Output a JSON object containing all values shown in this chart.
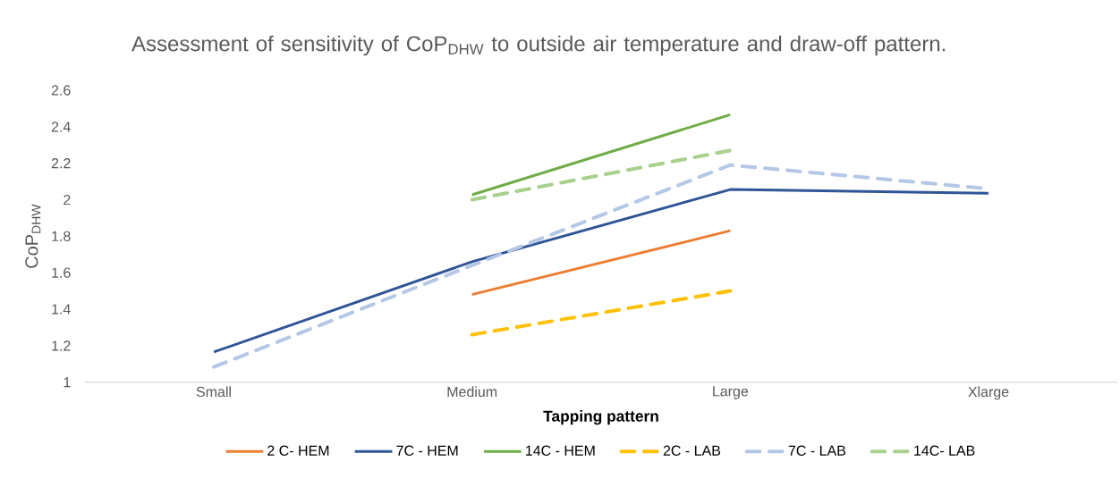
{
  "chart_data": {
    "type": "line",
    "title": "Assessment of sensitivity of CoP$_{DHW}$ to outside air temperature and draw-off pattern.",
    "xlabel": "Tapping pattern",
    "ylabel": "CoP$_{DHW}$",
    "categories": [
      "Small",
      "Medium",
      "Large",
      "Xlarge"
    ],
    "ylim": [
      1,
      2.6
    ],
    "yticks": [
      1,
      1.2,
      1.4,
      1.6,
      1.8,
      2,
      2.2,
      2.4,
      2.6
    ],
    "grid": false,
    "legend": "bottom",
    "marker": "none",
    "series": [
      {
        "name": "2 C- HEM",
        "color": "#ed7d31",
        "line_style": "solid",
        "values": [
          null,
          1.48,
          1.83,
          null
        ]
      },
      {
        "name": "7C - HEM",
        "color": "#2f5597",
        "line_style": "solid",
        "values": [
          1.165,
          1.66,
          2.056,
          2.035
        ]
      },
      {
        "name": "14C - HEM",
        "color": "#70ad47",
        "line_style": "solid",
        "values": [
          null,
          2.027,
          2.466,
          null
        ]
      },
      {
        "name": "2C - LAB",
        "color": "#ffc000",
        "line_style": "dashed",
        "values": [
          null,
          1.26,
          1.5,
          null
        ]
      },
      {
        "name": "7C - LAB",
        "color": "#b4c7e7",
        "line_style": "dashed",
        "values": [
          1.083,
          1.64,
          2.19,
          2.06
        ]
      },
      {
        "name": "14C- LAB",
        "color": "#a9d18e",
        "line_style": "dashed",
        "values": [
          null,
          2.0,
          2.27,
          null
        ]
      }
    ]
  }
}
